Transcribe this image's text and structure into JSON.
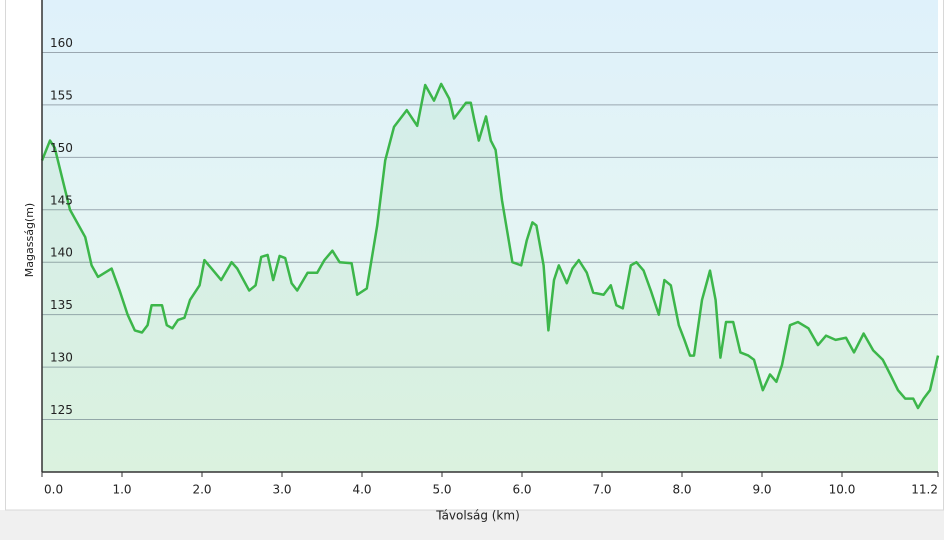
{
  "chart_data": {
    "type": "area",
    "x_label": "Távolság (km)",
    "y_label": "Magasság(m)",
    "x": [
      0,
      0.1,
      0.16,
      0.35,
      0.54,
      0.62,
      0.7,
      0.87,
      0.97,
      1.07,
      1.16,
      1.25,
      1.32,
      1.37,
      1.5,
      1.56,
      1.63,
      1.7,
      1.78,
      1.85,
      1.97,
      2.03,
      2.12,
      2.24,
      2.37,
      2.44,
      2.59,
      2.67,
      2.74,
      2.82,
      2.89,
      2.97,
      3.04,
      3.12,
      3.19,
      3.32,
      3.44,
      3.53,
      3.63,
      3.72,
      3.87,
      3.94,
      4.06,
      4.19,
      4.29,
      4.4,
      4.56,
      4.69,
      4.79,
      4.9,
      4.99,
      5.09,
      5.15,
      5.21,
      5.3,
      5.36,
      5.4,
      5.46,
      5.55,
      5.61,
      5.67,
      5.75,
      5.88,
      5.99,
      6.06,
      6.13,
      6.18,
      6.27,
      6.33,
      6.4,
      6.46,
      6.56,
      6.63,
      6.71,
      6.81,
      6.89,
      7.02,
      7.11,
      7.18,
      7.26,
      7.36,
      7.43,
      7.52,
      7.61,
      7.71,
      7.78,
      7.86,
      7.96,
      8.03,
      8.1,
      8.15,
      8.25,
      8.35,
      8.42,
      8.48,
      8.55,
      8.64,
      8.73,
      8.83,
      8.9,
      9.01,
      9.1,
      9.18,
      9.25,
      9.35,
      9.45,
      9.58,
      9.7,
      9.8,
      9.92,
      10.05,
      10.15,
      10.27,
      10.39,
      10.51,
      10.61,
      10.7,
      10.79,
      10.89,
      10.95,
      11.02,
      11.1,
      11.2
    ],
    "series": [
      {
        "color": "#3cb64a",
        "values": [
          149.7,
          151.6,
          150.9,
          145,
          142.4,
          139.7,
          138.6,
          139.4,
          137.3,
          135,
          133.5,
          133.3,
          134,
          135.9,
          135.9,
          134,
          133.7,
          134.5,
          134.7,
          136.4,
          137.8,
          140.2,
          139.4,
          138.3,
          140,
          139.4,
          137.3,
          137.8,
          140.5,
          140.7,
          138.3,
          140.6,
          140.4,
          138,
          137.3,
          139,
          139,
          140.2,
          141.1,
          140,
          139.9,
          136.9,
          137.5,
          143.5,
          149.7,
          152.9,
          154.5,
          153,
          156.9,
          155.4,
          157,
          155.6,
          153.7,
          154.3,
          155.2,
          155.2,
          153.7,
          151.6,
          153.9,
          151.6,
          150.7,
          145.9,
          140,
          139.7,
          142.1,
          143.8,
          143.5,
          139.7,
          133.5,
          138.3,
          139.7,
          138,
          139.4,
          140.2,
          139,
          137.1,
          136.9,
          137.8,
          135.9,
          135.6,
          139.7,
          140,
          139.2,
          137.3,
          135,
          138.3,
          137.8,
          134,
          132.6,
          131.1,
          131.1,
          136.4,
          139.2,
          136.4,
          130.9,
          134.3,
          134.3,
          131.4,
          131.1,
          130.7,
          127.8,
          129.3,
          128.6,
          130.2,
          134,
          134.3,
          133.7,
          132.1,
          133,
          132.6,
          132.8,
          131.4,
          133.2,
          131.6,
          130.7,
          129.2,
          127.8,
          127,
          127,
          126.1,
          127,
          127.8,
          131.1
        ]
      }
    ],
    "xlim": [
      0,
      11.2
    ],
    "ylim": [
      120,
      165
    ],
    "xticks": [
      {
        "value": 0,
        "label": "0.0"
      },
      {
        "value": 1,
        "label": "1.0"
      },
      {
        "value": 2,
        "label": "2.0"
      },
      {
        "value": 3,
        "label": "3.0"
      },
      {
        "value": 4,
        "label": "4.0"
      },
      {
        "value": 5,
        "label": "5.0"
      },
      {
        "value": 6,
        "label": "6.0"
      },
      {
        "value": 7,
        "label": "7.0"
      },
      {
        "value": 8,
        "label": "8.0"
      },
      {
        "value": 9,
        "label": "9.0"
      },
      {
        "value": 10,
        "label": "10.0"
      },
      11.2
    ],
    "yticks": [
      125,
      130,
      135,
      140,
      145,
      150,
      155,
      160
    ],
    "grid": true
  }
}
